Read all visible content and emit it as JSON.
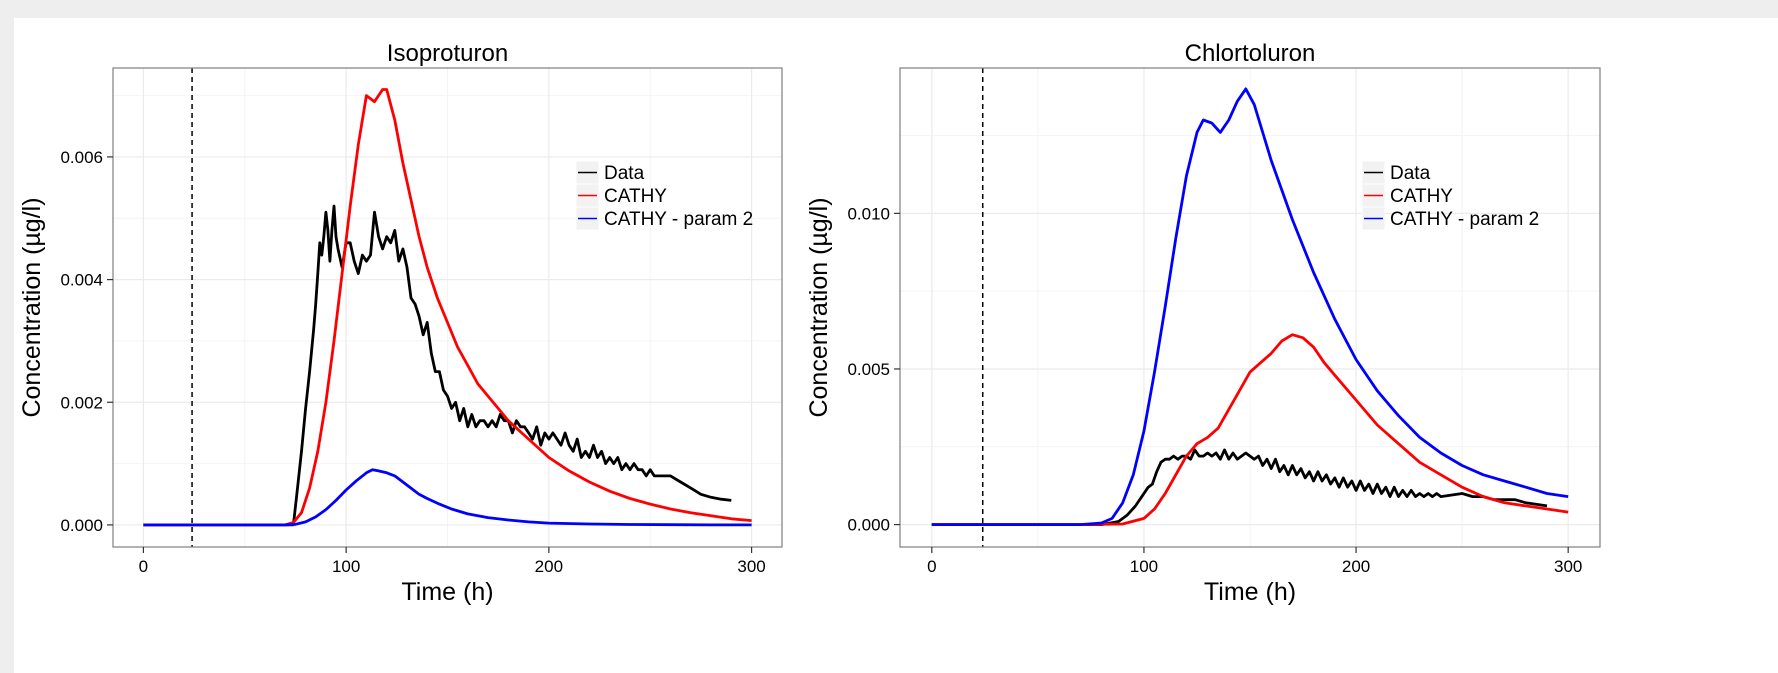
{
  "chart_data": [
    {
      "type": "line",
      "title": "Isoproturon",
      "xlabel": "Time (h)",
      "ylabel": "Concentration (µg/l)",
      "xlim": [
        -15,
        315
      ],
      "ylim": [
        -0.00036,
        0.00745
      ],
      "xticks": [
        0,
        100,
        200,
        300
      ],
      "xtick_labels": [
        "0",
        "100",
        "200",
        "300"
      ],
      "yticks": [
        0,
        0.002,
        0.004,
        0.006
      ],
      "ytick_labels": [
        "0.000",
        "0.002",
        "0.004",
        "0.006"
      ],
      "grid": true,
      "legend_position": "top-right",
      "vline_x": 24,
      "series": [
        {
          "name": "Data",
          "color": "#000000",
          "x": [
            0,
            20,
            40,
            60,
            70,
            74,
            76,
            78,
            80,
            82,
            84,
            85,
            86,
            87,
            88,
            89,
            90,
            91,
            92,
            93,
            94,
            95,
            96,
            98,
            100,
            102,
            104,
            106,
            108,
            110,
            112,
            114,
            116,
            118,
            120,
            122,
            124,
            126,
            128,
            130,
            132,
            134,
            136,
            138,
            140,
            142,
            144,
            146,
            148,
            150,
            152,
            154,
            156,
            158,
            160,
            162,
            164,
            166,
            168,
            170,
            172,
            174,
            176,
            178,
            180,
            182,
            184,
            186,
            188,
            190,
            192,
            194,
            196,
            198,
            200,
            202,
            204,
            206,
            208,
            210,
            212,
            214,
            216,
            218,
            220,
            222,
            224,
            226,
            228,
            230,
            232,
            234,
            236,
            238,
            240,
            242,
            244,
            246,
            248,
            250,
            252,
            254,
            256,
            260,
            265,
            270,
            275,
            280,
            285,
            290
          ],
          "y": [
            0,
            0,
            0,
            0,
            0,
            0.0,
            0.0006,
            0.0012,
            0.0019,
            0.0025,
            0.0032,
            0.0036,
            0.0041,
            0.0046,
            0.0044,
            0.0047,
            0.0051,
            0.0048,
            0.0043,
            0.0048,
            0.0052,
            0.0047,
            0.0045,
            0.0042,
            0.0046,
            0.0046,
            0.0043,
            0.0041,
            0.0044,
            0.0043,
            0.0044,
            0.0051,
            0.0047,
            0.0045,
            0.0047,
            0.0046,
            0.0048,
            0.0043,
            0.0045,
            0.0042,
            0.0037,
            0.0036,
            0.0034,
            0.0031,
            0.0033,
            0.0028,
            0.0025,
            0.0025,
            0.0022,
            0.0021,
            0.0019,
            0.002,
            0.0017,
            0.0019,
            0.0016,
            0.0018,
            0.0016,
            0.0017,
            0.0017,
            0.0016,
            0.0017,
            0.0016,
            0.0018,
            0.0017,
            0.0017,
            0.0015,
            0.0017,
            0.0016,
            0.0016,
            0.0015,
            0.0014,
            0.0016,
            0.0013,
            0.0015,
            0.0014,
            0.0015,
            0.0014,
            0.0013,
            0.0015,
            0.0013,
            0.0012,
            0.0014,
            0.0011,
            0.0012,
            0.0011,
            0.0013,
            0.0011,
            0.0012,
            0.001,
            0.0011,
            0.001,
            0.0011,
            0.0009,
            0.001,
            0.0009,
            0.001,
            0.0009,
            0.0009,
            0.0008,
            0.0009,
            0.0008,
            0.0008,
            0.0008,
            0.0008,
            0.0007,
            0.0006,
            0.0005,
            0.00045,
            0.00042,
            0.0004
          ]
        },
        {
          "name": "CATHY",
          "color": "#ff0000",
          "x": [
            0,
            40,
            70,
            74,
            78,
            82,
            86,
            90,
            94,
            98,
            102,
            106,
            110,
            114,
            118,
            120,
            124,
            128,
            132,
            136,
            140,
            145,
            150,
            155,
            160,
            165,
            170,
            175,
            180,
            190,
            200,
            210,
            220,
            230,
            240,
            250,
            260,
            270,
            280,
            290,
            300
          ],
          "y": [
            0,
            0,
            0,
            4e-05,
            0.0002,
            0.0006,
            0.0012,
            0.002,
            0.003,
            0.0041,
            0.0052,
            0.0062,
            0.007,
            0.0069,
            0.0071,
            0.0071,
            0.0066,
            0.0059,
            0.0053,
            0.0047,
            0.0042,
            0.0037,
            0.0033,
            0.0029,
            0.0026,
            0.0023,
            0.0021,
            0.0019,
            0.0017,
            0.0014,
            0.0011,
            0.00088,
            0.0007,
            0.00055,
            0.00043,
            0.00034,
            0.00026,
            0.0002,
            0.00015,
            0.0001,
            7e-05
          ]
        },
        {
          "name": "CATHY - param 2",
          "color": "#0000ff",
          "x": [
            0,
            40,
            70,
            75,
            80,
            85,
            90,
            95,
            100,
            105,
            110,
            113,
            116,
            120,
            124,
            128,
            132,
            136,
            140,
            146,
            152,
            160,
            170,
            180,
            190,
            200,
            220,
            240,
            260,
            280,
            300
          ],
          "y": [
            0,
            0,
            0,
            1e-05,
            5e-05,
            0.00013,
            0.00025,
            0.0004,
            0.00057,
            0.00072,
            0.00085,
            0.0009,
            0.00088,
            0.00085,
            0.0008,
            0.0007,
            0.0006,
            0.0005,
            0.00043,
            0.00034,
            0.00026,
            0.00018,
            0.00012,
            8e-05,
            5e-05,
            3e-05,
            1.5e-05,
            7e-06,
            3e-06,
            1e-06,
            5e-07
          ]
        }
      ]
    },
    {
      "type": "line",
      "title": "Chlortoluron",
      "xlabel": "Time (h)",
      "ylabel": "Concentration (µg/l)",
      "xlim": [
        -15,
        315
      ],
      "ylim": [
        -0.00072,
        0.01467
      ],
      "xticks": [
        0,
        100,
        200,
        300
      ],
      "xtick_labels": [
        "0",
        "100",
        "200",
        "300"
      ],
      "yticks": [
        0,
        0.005,
        0.01
      ],
      "ytick_labels": [
        "0.000",
        "0.005",
        "0.010"
      ],
      "grid": true,
      "legend_position": "top-right",
      "vline_x": 24,
      "series": [
        {
          "name": "Data",
          "color": "#000000",
          "x": [
            0,
            40,
            80,
            88,
            92,
            96,
            100,
            102,
            104,
            106,
            108,
            110,
            112,
            114,
            116,
            118,
            120,
            122,
            124,
            126,
            128,
            130,
            132,
            134,
            136,
            138,
            140,
            142,
            144,
            146,
            148,
            150,
            152,
            154,
            156,
            158,
            160,
            162,
            164,
            166,
            168,
            170,
            172,
            174,
            176,
            178,
            180,
            182,
            184,
            186,
            188,
            190,
            192,
            194,
            196,
            198,
            200,
            202,
            204,
            206,
            208,
            210,
            212,
            214,
            216,
            218,
            220,
            222,
            224,
            226,
            228,
            230,
            232,
            234,
            236,
            238,
            240,
            250,
            255,
            260,
            265,
            270,
            275,
            280,
            290
          ],
          "y": [
            0,
            0,
            0,
            0.0001,
            0.0003,
            0.0006,
            0.001,
            0.0012,
            0.0013,
            0.0017,
            0.002,
            0.0021,
            0.0021,
            0.0022,
            0.0021,
            0.0022,
            0.0022,
            0.0021,
            0.0024,
            0.0022,
            0.0022,
            0.0023,
            0.0022,
            0.0023,
            0.0021,
            0.0024,
            0.0021,
            0.0023,
            0.0021,
            0.0022,
            0.0023,
            0.0022,
            0.0021,
            0.0022,
            0.0019,
            0.0021,
            0.0018,
            0.0021,
            0.0017,
            0.0019,
            0.0016,
            0.0019,
            0.0016,
            0.0018,
            0.0015,
            0.0017,
            0.0014,
            0.0017,
            0.0014,
            0.0016,
            0.0013,
            0.0015,
            0.0012,
            0.0015,
            0.0012,
            0.0014,
            0.0011,
            0.0014,
            0.0011,
            0.0013,
            0.001,
            0.0013,
            0.001,
            0.0012,
            0.0009,
            0.0012,
            0.0009,
            0.0011,
            0.0009,
            0.0011,
            0.0009,
            0.001,
            0.0009,
            0.001,
            0.0009,
            0.001,
            0.0009,
            0.001,
            0.0009,
            0.0009,
            0.0008,
            0.0008,
            0.0008,
            0.0007,
            0.0006
          ]
        },
        {
          "name": "CATHY",
          "color": "#ff0000",
          "x": [
            0,
            70,
            90,
            100,
            105,
            110,
            115,
            120,
            125,
            130,
            135,
            140,
            145,
            150,
            155,
            160,
            165,
            170,
            175,
            180,
            185,
            190,
            200,
            210,
            220,
            230,
            240,
            250,
            260,
            270,
            280,
            290,
            300
          ],
          "y": [
            0,
            0,
            2e-05,
            0.0002,
            0.0005,
            0.001,
            0.0016,
            0.0022,
            0.0026,
            0.0028,
            0.0031,
            0.0037,
            0.0043,
            0.0049,
            0.0052,
            0.0055,
            0.0059,
            0.0061,
            0.006,
            0.0057,
            0.0052,
            0.0048,
            0.004,
            0.0032,
            0.0026,
            0.002,
            0.0016,
            0.0012,
            0.0009,
            0.0007,
            0.0006,
            0.0005,
            0.0004
          ]
        },
        {
          "name": "CATHY - param 2",
          "color": "#0000ff",
          "x": [
            0,
            70,
            80,
            85,
            90,
            95,
            100,
            105,
            110,
            115,
            120,
            125,
            128,
            132,
            136,
            140,
            144,
            148,
            152,
            156,
            160,
            170,
            180,
            190,
            200,
            210,
            220,
            230,
            240,
            250,
            260,
            270,
            280,
            290,
            300
          ],
          "y": [
            0,
            0,
            5e-05,
            0.0002,
            0.0007,
            0.0016,
            0.003,
            0.0049,
            0.007,
            0.0092,
            0.0112,
            0.0126,
            0.013,
            0.0129,
            0.0126,
            0.013,
            0.0136,
            0.014,
            0.0135,
            0.0126,
            0.0117,
            0.0098,
            0.0081,
            0.0066,
            0.0053,
            0.0043,
            0.0035,
            0.0028,
            0.0023,
            0.0019,
            0.0016,
            0.0014,
            0.0012,
            0.001,
            0.0009
          ]
        }
      ]
    }
  ]
}
